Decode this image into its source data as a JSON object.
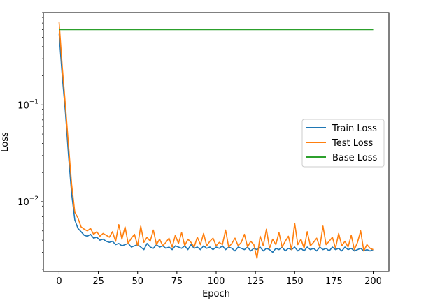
{
  "chart_data": {
    "type": "line",
    "title": "",
    "xlabel": "Epoch",
    "ylabel": "Loss",
    "yscale": "log",
    "xlim": [
      -10,
      210
    ],
    "ylim": [
      0.0019,
      0.9
    ],
    "x_ticks": [
      0,
      25,
      50,
      75,
      100,
      125,
      150,
      175,
      200
    ],
    "y_ticks": [
      {
        "value": 0.01,
        "base": "10",
        "exp": "−2"
      },
      {
        "value": 0.1,
        "base": "10",
        "exp": "−1"
      }
    ],
    "legend_position": "center-right",
    "series": [
      {
        "name": "Train Loss",
        "color": "#1f77b4",
        "x": [
          0,
          2,
          4,
          6,
          8,
          10,
          12,
          14,
          16,
          18,
          20,
          22,
          24,
          26,
          28,
          30,
          32,
          34,
          36,
          38,
          40,
          42,
          44,
          46,
          48,
          50,
          52,
          54,
          56,
          58,
          60,
          62,
          64,
          66,
          68,
          70,
          72,
          74,
          76,
          78,
          80,
          82,
          84,
          86,
          88,
          90,
          92,
          94,
          96,
          98,
          100,
          102,
          104,
          106,
          108,
          110,
          112,
          114,
          116,
          118,
          120,
          122,
          124,
          126,
          128,
          130,
          132,
          134,
          136,
          138,
          140,
          142,
          144,
          146,
          148,
          150,
          152,
          154,
          156,
          158,
          160,
          162,
          164,
          166,
          168,
          170,
          172,
          174,
          176,
          178,
          180,
          182,
          184,
          186,
          188,
          190,
          192,
          194,
          196,
          198,
          200
        ],
        "y": [
          0.55,
          0.2,
          0.085,
          0.03,
          0.012,
          0.0065,
          0.0053,
          0.0049,
          0.0045,
          0.0044,
          0.0046,
          0.0042,
          0.0043,
          0.004,
          0.0041,
          0.0039,
          0.0038,
          0.0039,
          0.0036,
          0.0037,
          0.0035,
          0.0036,
          0.0037,
          0.0034,
          0.0035,
          0.0036,
          0.0034,
          0.0032,
          0.0037,
          0.0034,
          0.0033,
          0.0036,
          0.0034,
          0.0035,
          0.0033,
          0.0034,
          0.0032,
          0.0035,
          0.0034,
          0.0033,
          0.0035,
          0.0032,
          0.0036,
          0.0033,
          0.0034,
          0.0032,
          0.0035,
          0.0033,
          0.0034,
          0.0032,
          0.0034,
          0.0033,
          0.0035,
          0.0032,
          0.0034,
          0.0033,
          0.0031,
          0.0034,
          0.0033,
          0.0032,
          0.0034,
          0.0031,
          0.0033,
          0.0032,
          0.0034,
          0.0031,
          0.0033,
          0.0032,
          0.003,
          0.0033,
          0.0032,
          0.0034,
          0.0031,
          0.0033,
          0.0032,
          0.0034,
          0.0031,
          0.0033,
          0.0031,
          0.0034,
          0.0032,
          0.0033,
          0.0031,
          0.0034,
          0.0032,
          0.0033,
          0.0031,
          0.0034,
          0.0032,
          0.0033,
          0.0031,
          0.0034,
          0.0032,
          0.0033,
          0.0031,
          0.0032,
          0.0033,
          0.0031,
          0.0032,
          0.0031,
          0.0032
        ]
      },
      {
        "name": "Test Loss",
        "color": "#ff7f0e",
        "x": [
          0,
          2,
          4,
          6,
          8,
          10,
          12,
          14,
          16,
          18,
          20,
          22,
          24,
          26,
          28,
          30,
          32,
          34,
          36,
          38,
          40,
          42,
          44,
          46,
          48,
          50,
          52,
          54,
          56,
          58,
          60,
          62,
          64,
          66,
          68,
          70,
          72,
          74,
          76,
          78,
          80,
          82,
          84,
          86,
          88,
          90,
          92,
          94,
          96,
          98,
          100,
          102,
          104,
          106,
          108,
          110,
          112,
          114,
          116,
          118,
          120,
          122,
          124,
          126,
          128,
          130,
          132,
          134,
          136,
          138,
          140,
          142,
          144,
          146,
          148,
          150,
          152,
          154,
          156,
          158,
          160,
          162,
          164,
          166,
          168,
          170,
          172,
          174,
          176,
          178,
          180,
          182,
          184,
          186,
          188,
          190,
          192,
          194,
          196,
          198,
          200
        ],
        "y": [
          0.72,
          0.25,
          0.1,
          0.038,
          0.015,
          0.0078,
          0.0068,
          0.0055,
          0.0052,
          0.005,
          0.0053,
          0.0046,
          0.0049,
          0.0044,
          0.0047,
          0.0045,
          0.0043,
          0.0049,
          0.0039,
          0.0058,
          0.0041,
          0.0055,
          0.0037,
          0.0042,
          0.0046,
          0.0035,
          0.0056,
          0.0038,
          0.0043,
          0.0039,
          0.0051,
          0.0036,
          0.0041,
          0.0035,
          0.0038,
          0.0042,
          0.0034,
          0.0045,
          0.0037,
          0.0048,
          0.0035,
          0.0041,
          0.0038,
          0.0034,
          0.0043,
          0.0036,
          0.0047,
          0.0035,
          0.0039,
          0.0042,
          0.0035,
          0.0038,
          0.0036,
          0.0051,
          0.0034,
          0.0037,
          0.0042,
          0.0035,
          0.0038,
          0.0046,
          0.0034,
          0.0039,
          0.0036,
          0.0026,
          0.0044,
          0.0035,
          0.0052,
          0.0033,
          0.0041,
          0.0036,
          0.0048,
          0.0034,
          0.0039,
          0.0044,
          0.0032,
          0.006,
          0.0036,
          0.0041,
          0.0033,
          0.0049,
          0.0035,
          0.0038,
          0.0042,
          0.0034,
          0.0056,
          0.0036,
          0.0039,
          0.0043,
          0.0033,
          0.0047,
          0.0035,
          0.0039,
          0.0034,
          0.0045,
          0.0032,
          0.0038,
          0.005,
          0.0031,
          0.0036,
          0.0033,
          0.0032
        ]
      },
      {
        "name": "Base Loss",
        "color": "#2ca02c",
        "x": [
          0,
          200
        ],
        "y": [
          0.6,
          0.6
        ]
      }
    ]
  }
}
